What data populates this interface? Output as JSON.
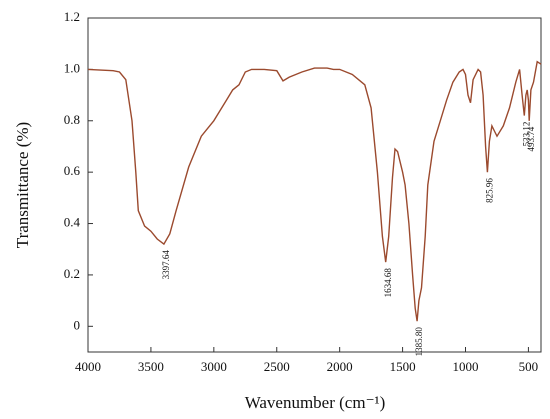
{
  "chart_data": {
    "type": "line",
    "x_label": "Wavenumber (cm⁻¹)",
    "y_label": "Transmittance (%)",
    "xlim": [
      4000,
      400
    ],
    "ylim": [
      -0.1,
      1.2
    ],
    "xticks": [
      4000,
      3500,
      3000,
      2500,
      2000,
      1500,
      1000,
      500
    ],
    "yticks": [
      0,
      0.2,
      0.4,
      0.6,
      0.8,
      {
        "value": 1.0,
        "label": "1.0"
      },
      1.2
    ],
    "grid": false,
    "series": [
      {
        "color": "#9b4a2e",
        "x": [
          4000,
          3800,
          3750,
          3700,
          3650,
          3620,
          3600,
          3550,
          3500,
          3450,
          3397,
          3350,
          3300,
          3200,
          3100,
          3000,
          2950,
          2900,
          2850,
          2800,
          2750,
          2700,
          2600,
          2500,
          2450,
          2400,
          2300,
          2200,
          2100,
          2050,
          2000,
          1900,
          1800,
          1750,
          1700,
          1660,
          1634,
          1610,
          1580,
          1560,
          1540,
          1500,
          1480,
          1450,
          1420,
          1400,
          1385,
          1370,
          1350,
          1320,
          1300,
          1250,
          1200,
          1150,
          1100,
          1050,
          1020,
          1000,
          980,
          960,
          940,
          900,
          880,
          860,
          840,
          826,
          810,
          790,
          770,
          750,
          700,
          650,
          600,
          570,
          550,
          533,
          520,
          510,
          500,
          494,
          480,
          460,
          430,
          400
        ],
        "values": [
          1.0,
          0.995,
          0.99,
          0.96,
          0.8,
          0.6,
          0.45,
          0.39,
          0.37,
          0.34,
          0.32,
          0.36,
          0.45,
          0.62,
          0.74,
          0.8,
          0.84,
          0.88,
          0.92,
          0.94,
          0.99,
          1.0,
          1.0,
          0.995,
          0.955,
          0.97,
          0.99,
          1.005,
          1.005,
          1.0,
          1.0,
          0.98,
          0.94,
          0.85,
          0.6,
          0.35,
          0.25,
          0.35,
          0.58,
          0.69,
          0.68,
          0.6,
          0.55,
          0.4,
          0.2,
          0.07,
          0.02,
          0.1,
          0.15,
          0.35,
          0.55,
          0.72,
          0.8,
          0.88,
          0.95,
          0.99,
          1.0,
          0.98,
          0.9,
          0.87,
          0.96,
          1.0,
          0.99,
          0.9,
          0.7,
          0.6,
          0.72,
          0.78,
          0.76,
          0.74,
          0.78,
          0.85,
          0.95,
          1.0,
          0.9,
          0.82,
          0.9,
          0.92,
          0.88,
          0.8,
          0.92,
          0.95,
          1.03,
          1.02
        ]
      }
    ],
    "annotations": [
      {
        "text": "3397.64",
        "x": 3397,
        "y": 0.32
      },
      {
        "text": "1634.68",
        "x": 1634,
        "y": 0.25
      },
      {
        "text": "1385.80",
        "x": 1385,
        "y": 0.02
      },
      {
        "text": "825.96",
        "x": 826,
        "y": 0.6
      },
      {
        "text": "533.12",
        "x": 533,
        "y": 0.82
      },
      {
        "text": "493.74",
        "x": 494,
        "y": 0.8
      }
    ]
  }
}
